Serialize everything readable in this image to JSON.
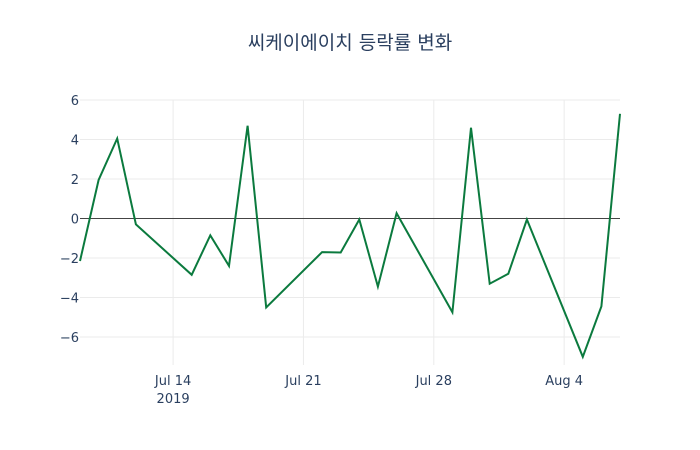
{
  "chart_data": {
    "type": "line",
    "title": "씨케이에이치 등락률 변화",
    "xlabel": "",
    "ylabel": "",
    "x": [
      "2019-07-09",
      "2019-07-10",
      "2019-07-11",
      "2019-07-12",
      "2019-07-15",
      "2019-07-16",
      "2019-07-17",
      "2019-07-18",
      "2019-07-19",
      "2019-07-22",
      "2019-07-23",
      "2019-07-24",
      "2019-07-25",
      "2019-07-26",
      "2019-07-29",
      "2019-07-30",
      "2019-07-31",
      "2019-08-01",
      "2019-08-02",
      "2019-08-05",
      "2019-08-06",
      "2019-08-07"
    ],
    "series": [
      {
        "name": "등락률",
        "color": "#0b7a3e",
        "values": [
          -2.15,
          1.95,
          4.05,
          -0.3,
          -2.85,
          -0.85,
          -2.4,
          4.7,
          -4.5,
          -1.7,
          -1.72,
          -0.05,
          -3.45,
          0.27,
          -4.75,
          4.6,
          -3.3,
          -2.8,
          -0.05,
          -7.0,
          -4.45,
          5.3
        ]
      }
    ],
    "x_ticks": [
      {
        "date": "2019-07-14",
        "label": "Jul 14",
        "sublabel": "2019"
      },
      {
        "date": "2019-07-21",
        "label": "Jul 21",
        "sublabel": ""
      },
      {
        "date": "2019-07-28",
        "label": "Jul 28",
        "sublabel": ""
      },
      {
        "date": "2019-08-04",
        "label": "Aug 4",
        "sublabel": ""
      }
    ],
    "y_ticks": [
      6,
      4,
      2,
      0,
      -2,
      -4,
      -6
    ],
    "xlim": [
      "2019-07-09",
      "2019-08-07"
    ],
    "ylim": [
      -7.4,
      6.0
    ],
    "grid": true,
    "legend": "none"
  }
}
